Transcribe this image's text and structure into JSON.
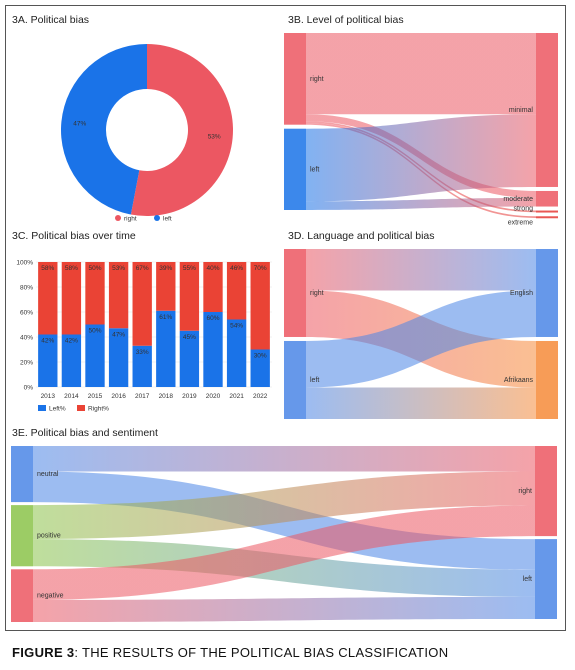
{
  "caption": {
    "label": "FIGURE 3",
    "text": ":  THE RESULTS OF THE POLITICAL BIAS CLASSIFICATION"
  },
  "colors": {
    "right": "#ec5762",
    "left": "#1a73e8",
    "left_bar": "#1a73e8",
    "right_bar": "#ea4335",
    "positive": "#8bc34a",
    "english": "#4b86e6",
    "afrikaans": "#f68b3a"
  },
  "chart_data": [
    {
      "id": "3A",
      "type": "pie",
      "title": "3A. Political bias",
      "slices": [
        {
          "name": "right",
          "value": 53,
          "label": "53%"
        },
        {
          "name": "left",
          "value": 47,
          "label": "47%"
        }
      ],
      "legend": [
        "right",
        "left"
      ],
      "legend_position": "bottom"
    },
    {
      "id": "3B",
      "type": "sankey",
      "title": "3B. Level of political bias",
      "sources": [
        "right",
        "left"
      ],
      "targets": [
        "minimal",
        "moderate",
        "strong",
        "extreme"
      ],
      "flows": [
        {
          "from": "right",
          "to": "minimal",
          "value": 47
        },
        {
          "from": "right",
          "to": "moderate",
          "value": 4
        },
        {
          "from": "right",
          "to": "strong",
          "value": 1
        },
        {
          "from": "right",
          "to": "extreme",
          "value": 1
        },
        {
          "from": "left",
          "to": "minimal",
          "value": 42
        },
        {
          "from": "left",
          "to": "moderate",
          "value": 5
        }
      ]
    },
    {
      "id": "3C",
      "type": "bar",
      "stacked": true,
      "title": "3C. Political bias over time",
      "categories": [
        "2013",
        "2014",
        "2015",
        "2016",
        "2017",
        "2018",
        "2019",
        "2020",
        "2021",
        "2022"
      ],
      "series": [
        {
          "name": "Left%",
          "values": [
            42,
            42,
            50,
            47,
            33,
            61,
            45,
            60,
            54,
            30
          ],
          "labels": [
            "42%",
            "42%",
            "50%",
            "47%",
            "33%",
            "61%",
            "45%",
            "60%",
            "54%",
            "30%"
          ]
        },
        {
          "name": "Right%",
          "values": [
            58,
            58,
            50,
            53,
            67,
            39,
            55,
            40,
            46,
            70
          ],
          "labels": [
            "58%",
            "58%",
            "50%",
            "53%",
            "67%",
            "39%",
            "55%",
            "40%",
            "46%",
            "70%"
          ]
        }
      ],
      "ylim": [
        0,
        100
      ],
      "yticks": [
        "0%",
        "20%",
        "40%",
        "60%",
        "80%",
        "100%"
      ],
      "legend_position": "bottom-left"
    },
    {
      "id": "3D",
      "type": "sankey",
      "title": "3D. Language and political bias",
      "sources": [
        "right",
        "left"
      ],
      "targets": [
        "English",
        "Afrikaans"
      ],
      "flows": [
        {
          "from": "right",
          "to": "English",
          "value": 25
        },
        {
          "from": "right",
          "to": "Afrikaans",
          "value": 28
        },
        {
          "from": "left",
          "to": "English",
          "value": 28
        },
        {
          "from": "left",
          "to": "Afrikaans",
          "value": 19
        }
      ]
    },
    {
      "id": "3E",
      "type": "sankey",
      "title": "3E. Political bias and sentiment",
      "sources": [
        "neutral",
        "positive",
        "negative"
      ],
      "targets": [
        "right",
        "left"
      ],
      "flows": [
        {
          "from": "neutral",
          "to": "right",
          "value": 15
        },
        {
          "from": "neutral",
          "to": "left",
          "value": 18
        },
        {
          "from": "positive",
          "to": "right",
          "value": 20
        },
        {
          "from": "positive",
          "to": "left",
          "value": 16
        },
        {
          "from": "negative",
          "to": "right",
          "value": 18
        },
        {
          "from": "negative",
          "to": "left",
          "value": 13
        }
      ]
    }
  ]
}
